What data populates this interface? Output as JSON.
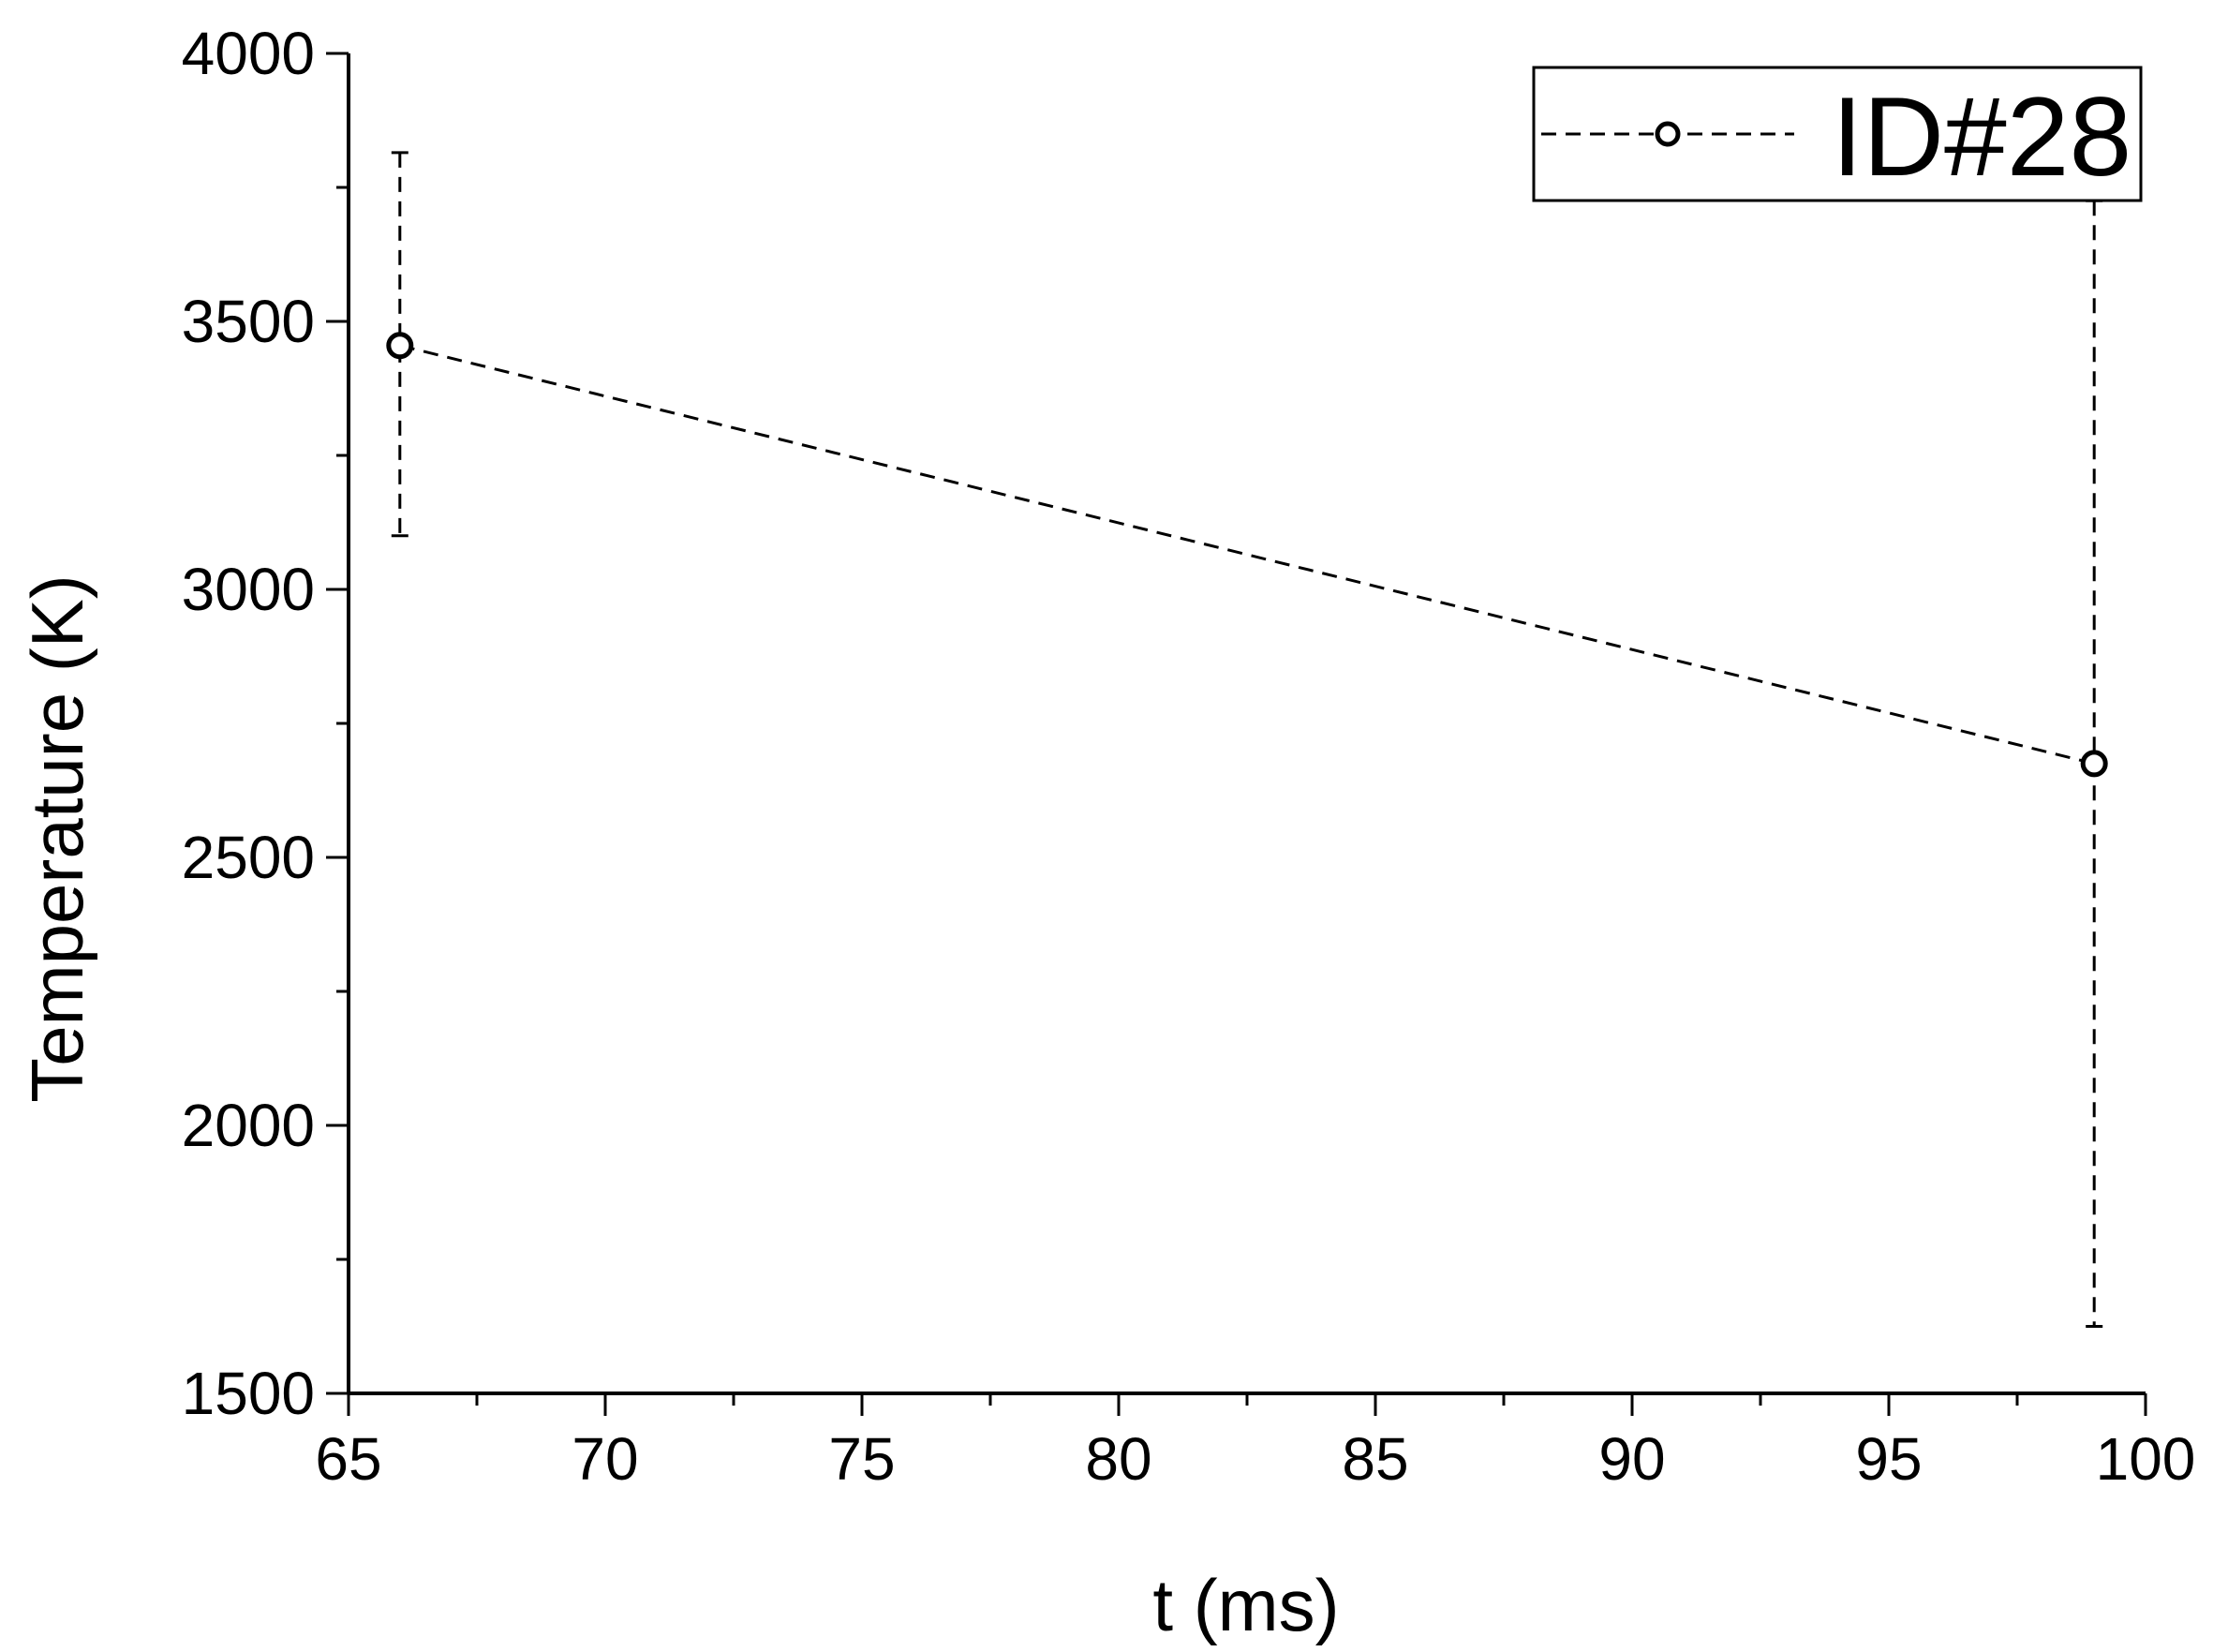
{
  "chart_data": {
    "type": "scatter",
    "xlabel": "t (ms)",
    "ylabel": "Temperature (K)",
    "xlim": [
      65,
      100
    ],
    "ylim": [
      1500,
      4000
    ],
    "x_major_ticks": [
      65,
      70,
      75,
      80,
      85,
      90,
      95,
      100
    ],
    "y_major_ticks": [
      1500,
      2000,
      2500,
      3000,
      3500,
      4000
    ],
    "x_tick_labels": [
      "65",
      "70",
      "75",
      "80",
      "85",
      "90",
      "95",
      "100"
    ],
    "y_tick_labels": [
      "1500",
      "2000",
      "2500",
      "3000",
      "3500",
      "4000"
    ],
    "grid": false,
    "legend_position": "top-right",
    "series": [
      {
        "name": "ID#28",
        "color": "#000000",
        "line_style": "dashed",
        "marker": "open-circle",
        "x": [
          66,
          99
        ],
        "y": [
          3455,
          2675
        ],
        "error_low": [
          3100,
          1625
        ],
        "error_high": [
          3815,
          3725
        ]
      }
    ]
  }
}
